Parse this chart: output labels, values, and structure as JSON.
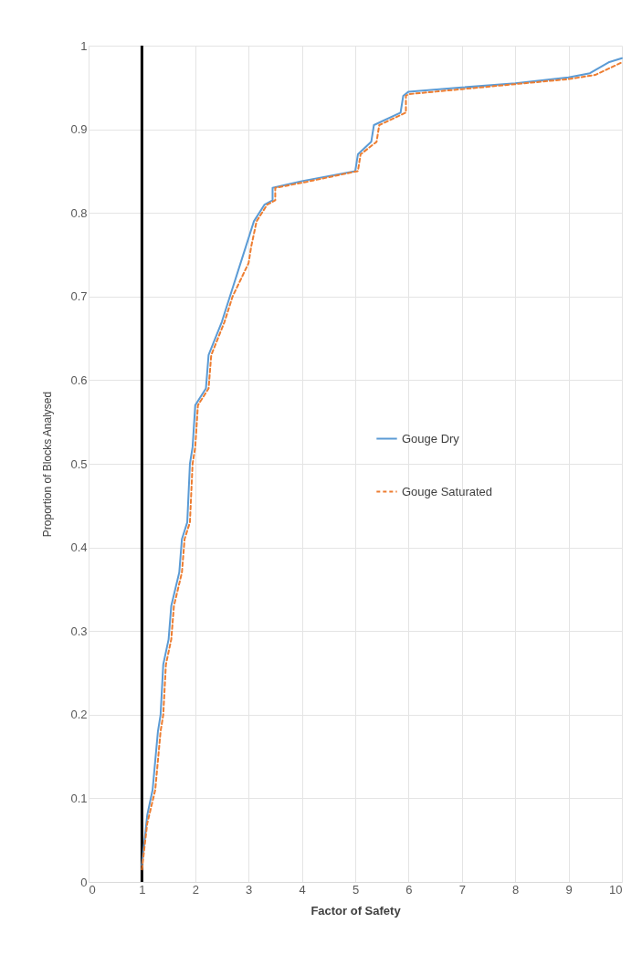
{
  "chart_data": {
    "type": "line",
    "xlabel": "Factor of Safety",
    "ylabel": "Proportion of Blocks Analysed",
    "xlim": [
      0,
      10
    ],
    "ylim": [
      0,
      1
    ],
    "xticks": [
      0,
      1,
      2,
      3,
      4,
      5,
      6,
      7,
      8,
      9,
      10
    ],
    "yticks": [
      0,
      0.1,
      0.2,
      0.3,
      0.4,
      0.5,
      0.6,
      0.7,
      0.8,
      0.9,
      1
    ],
    "grid": true,
    "legend": "right",
    "marker": "none",
    "ref_lines": [
      {
        "axis": "x",
        "value": 1,
        "color": "#000000"
      }
    ],
    "series": [
      {
        "name": "Gouge Dry",
        "color": "#5b9bd5",
        "line_style": "solid",
        "x": [
          1.0,
          1.1,
          1.2,
          1.3,
          1.35,
          1.4,
          1.5,
          1.55,
          1.7,
          1.75,
          1.85,
          1.9,
          1.95,
          2.0,
          2.2,
          2.25,
          2.5,
          2.65,
          2.85,
          2.95,
          3.1,
          3.3,
          3.45,
          3.45,
          4.0,
          5.0,
          5.05,
          5.3,
          5.35,
          5.85,
          5.9,
          6.0,
          7.0,
          8.0,
          9.0,
          9.4,
          9.75,
          10.0
        ],
        "values": [
          0.02,
          0.08,
          0.11,
          0.18,
          0.2,
          0.26,
          0.29,
          0.33,
          0.37,
          0.41,
          0.43,
          0.5,
          0.52,
          0.57,
          0.59,
          0.63,
          0.67,
          0.7,
          0.74,
          0.76,
          0.79,
          0.81,
          0.815,
          0.83,
          0.838,
          0.85,
          0.87,
          0.885,
          0.905,
          0.92,
          0.94,
          0.945,
          0.95,
          0.955,
          0.962,
          0.967,
          0.98,
          0.985
        ]
      },
      {
        "name": "Gouge Saturated",
        "color": "#ed7d31",
        "line_style": "dashed",
        "x": [
          1.0,
          1.1,
          1.25,
          1.35,
          1.4,
          1.45,
          1.55,
          1.6,
          1.75,
          1.8,
          1.9,
          1.95,
          2.0,
          2.05,
          2.25,
          2.3,
          2.55,
          2.7,
          3.0,
          3.05,
          3.15,
          3.35,
          3.5,
          3.5,
          4.0,
          5.05,
          5.1,
          5.4,
          5.45,
          5.95,
          5.95,
          6.0,
          7.0,
          8.0,
          9.0,
          9.5,
          10.0
        ],
        "values": [
          0.015,
          0.07,
          0.11,
          0.18,
          0.2,
          0.26,
          0.29,
          0.33,
          0.37,
          0.41,
          0.43,
          0.5,
          0.52,
          0.57,
          0.59,
          0.63,
          0.67,
          0.7,
          0.74,
          0.76,
          0.79,
          0.81,
          0.815,
          0.83,
          0.836,
          0.85,
          0.87,
          0.885,
          0.905,
          0.92,
          0.94,
          0.942,
          0.948,
          0.954,
          0.96,
          0.965,
          0.98
        ]
      }
    ]
  }
}
